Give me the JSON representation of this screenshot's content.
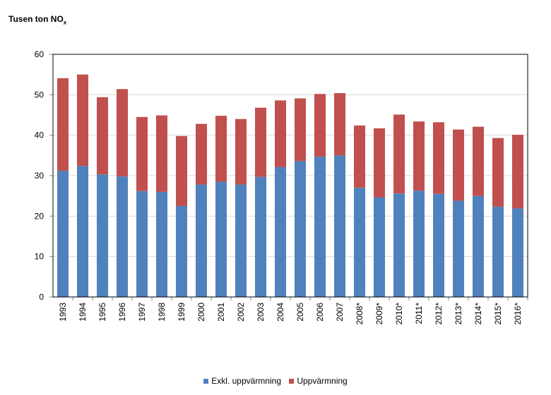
{
  "chart_data": {
    "type": "bar",
    "stacked": true,
    "title": "Tusen ton NO",
    "title_subscript": "x",
    "xlabel": "",
    "ylabel": "",
    "ylim": [
      0,
      60
    ],
    "yticks": [
      0,
      10,
      20,
      30,
      40,
      50,
      60
    ],
    "grid": true,
    "legend_position": "bottom",
    "categories": [
      "1993",
      "1994",
      "1995",
      "1996",
      "1997",
      "1998",
      "1999",
      "2000",
      "2001",
      "2002",
      "2003",
      "2004",
      "2005",
      "2006",
      "2007",
      "2008*",
      "2009*",
      "2010*",
      "2011*",
      "2012*",
      "2013*",
      "2014*",
      "2015*",
      "2016*"
    ],
    "series": [
      {
        "name": "Exkl. uppvärmning",
        "color": "#4f81bd",
        "values": [
          31.2,
          32.4,
          30.3,
          29.8,
          26.2,
          26.0,
          22.5,
          27.8,
          28.5,
          27.8,
          29.7,
          32.1,
          33.6,
          34.7,
          35.0,
          27.0,
          24.6,
          25.6,
          26.3,
          25.5,
          23.8,
          25.0,
          22.3,
          21.9
        ]
      },
      {
        "name": "Uppvärmning",
        "color": "#c0504d",
        "values": [
          22.9,
          22.6,
          19.1,
          21.6,
          18.3,
          18.9,
          17.3,
          15.0,
          16.3,
          16.2,
          17.1,
          16.5,
          15.5,
          15.5,
          15.4,
          15.4,
          17.1,
          19.5,
          17.1,
          17.7,
          17.6,
          17.1,
          17.0,
          18.2
        ]
      }
    ]
  },
  "colors": {
    "grid": "#d9d9d9",
    "axis": "#868686",
    "border": "#000000"
  }
}
